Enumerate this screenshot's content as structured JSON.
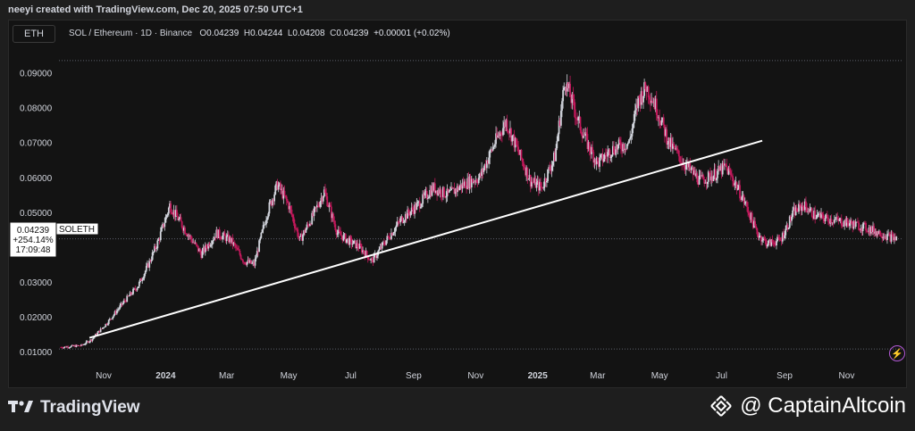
{
  "header": {
    "created_by": "neeyi created with TradingView.com, Dec 20, 2025 07:50 UTC+1"
  },
  "symbol_button": {
    "label": "ETH"
  },
  "legend": {
    "pair": "SOL / Ethereum · 1D · Binance",
    "o_label": "O",
    "o_value": "0.04239",
    "h_label": "H",
    "h_value": "0.04244",
    "l_label": "L",
    "l_value": "0.04208",
    "c_label": "C",
    "c_value": "0.04239",
    "change": "+0.00001 (+0.02%)"
  },
  "price_tag": {
    "value": "0.04239",
    "change": "+254.14%",
    "countdown": "17:09:48",
    "series_label": "SOLETH"
  },
  "footer": {
    "brand": "TradingView",
    "watermark": "@ CaptainAltcoin"
  },
  "colors": {
    "background": "#131313",
    "up": "#d1d4dc",
    "down": "#c2185b",
    "trendline": "#ffffff",
    "accent": "#b45ad7"
  },
  "icons": [
    "tradingview-logo-icon",
    "binance-icon",
    "lightning-icon"
  ],
  "chart_data": {
    "type": "line",
    "title": "SOL / Ethereum · 1D · Binance",
    "xlabel": "",
    "ylabel": "",
    "ylim": [
      0.0075,
      0.0955
    ],
    "y_ticks": [
      "0.09000",
      "0.08000",
      "0.07000",
      "0.06000",
      "0.05000",
      "0.04000",
      "0.03000",
      "0.02000",
      "0.01000"
    ],
    "y_tick_values": [
      0.09,
      0.08,
      0.07,
      0.06,
      0.05,
      0.04,
      0.03,
      0.02,
      0.01
    ],
    "x_ticks": [
      "Nov",
      "2024",
      "Mar",
      "May",
      "Jul",
      "Sep",
      "Nov",
      "2025",
      "Mar",
      "May",
      "Jul",
      "Sep",
      "Nov"
    ],
    "x_tick_dates": [
      "2023-11-01",
      "2024-01-01",
      "2024-03-01",
      "2024-05-01",
      "2024-07-01",
      "2024-09-01",
      "2024-11-01",
      "2025-01-01",
      "2025-03-01",
      "2025-05-01",
      "2025-07-01",
      "2025-09-01",
      "2025-11-01"
    ],
    "grid": false,
    "series": [
      {
        "name": "SOLETH",
        "x": [
          "2023-09-20",
          "2023-10-10",
          "2023-10-20",
          "2023-11-05",
          "2023-11-20",
          "2023-12-05",
          "2023-12-15",
          "2023-12-25",
          "2024-01-05",
          "2024-01-20",
          "2024-02-05",
          "2024-02-20",
          "2024-03-05",
          "2024-03-18",
          "2024-03-28",
          "2024-04-10",
          "2024-04-20",
          "2024-05-01",
          "2024-05-12",
          "2024-05-25",
          "2024-06-05",
          "2024-06-18",
          "2024-06-28",
          "2024-07-10",
          "2024-07-22",
          "2024-08-05",
          "2024-08-20",
          "2024-09-05",
          "2024-09-20",
          "2024-10-05",
          "2024-10-20",
          "2024-11-05",
          "2024-11-20",
          "2024-12-01",
          "2024-12-12",
          "2024-12-25",
          "2025-01-05",
          "2025-01-12",
          "2025-01-18",
          "2025-01-28",
          "2025-02-10",
          "2025-02-20",
          "2025-03-01",
          "2025-03-15",
          "2025-04-01",
          "2025-04-10",
          "2025-04-18",
          "2025-04-28",
          "2025-05-10",
          "2025-05-25",
          "2025-06-10",
          "2025-06-25",
          "2025-07-05",
          "2025-07-15",
          "2025-07-25",
          "2025-08-05",
          "2025-08-15",
          "2025-08-28",
          "2025-09-10",
          "2025-09-20",
          "2025-10-01",
          "2025-10-15",
          "2025-11-01",
          "2025-11-15",
          "2025-11-25",
          "2025-12-05",
          "2025-12-12",
          "2025-12-20"
        ],
        "values": [
          0.0113,
          0.0118,
          0.0135,
          0.0185,
          0.024,
          0.029,
          0.035,
          0.042,
          0.052,
          0.045,
          0.038,
          0.044,
          0.042,
          0.036,
          0.035,
          0.05,
          0.058,
          0.052,
          0.042,
          0.049,
          0.056,
          0.044,
          0.042,
          0.04,
          0.036,
          0.042,
          0.048,
          0.052,
          0.057,
          0.055,
          0.058,
          0.06,
          0.07,
          0.076,
          0.068,
          0.059,
          0.057,
          0.062,
          0.066,
          0.088,
          0.076,
          0.069,
          0.064,
          0.068,
          0.07,
          0.082,
          0.086,
          0.08,
          0.07,
          0.064,
          0.059,
          0.061,
          0.063,
          0.058,
          0.052,
          0.044,
          0.041,
          0.042,
          0.05,
          0.052,
          0.049,
          0.048,
          0.047,
          0.046,
          0.045,
          0.044,
          0.043,
          0.04239
        ]
      }
    ],
    "annotations": [
      {
        "type": "trendline",
        "x": [
          "2023-10-18",
          "2025-08-10"
        ],
        "values": [
          0.014,
          0.0705
        ]
      },
      {
        "type": "dotted-hline",
        "value": 0.0935
      },
      {
        "type": "dotted-hline",
        "value": 0.0108
      },
      {
        "type": "dotted-hline",
        "value": 0.04239
      }
    ]
  }
}
